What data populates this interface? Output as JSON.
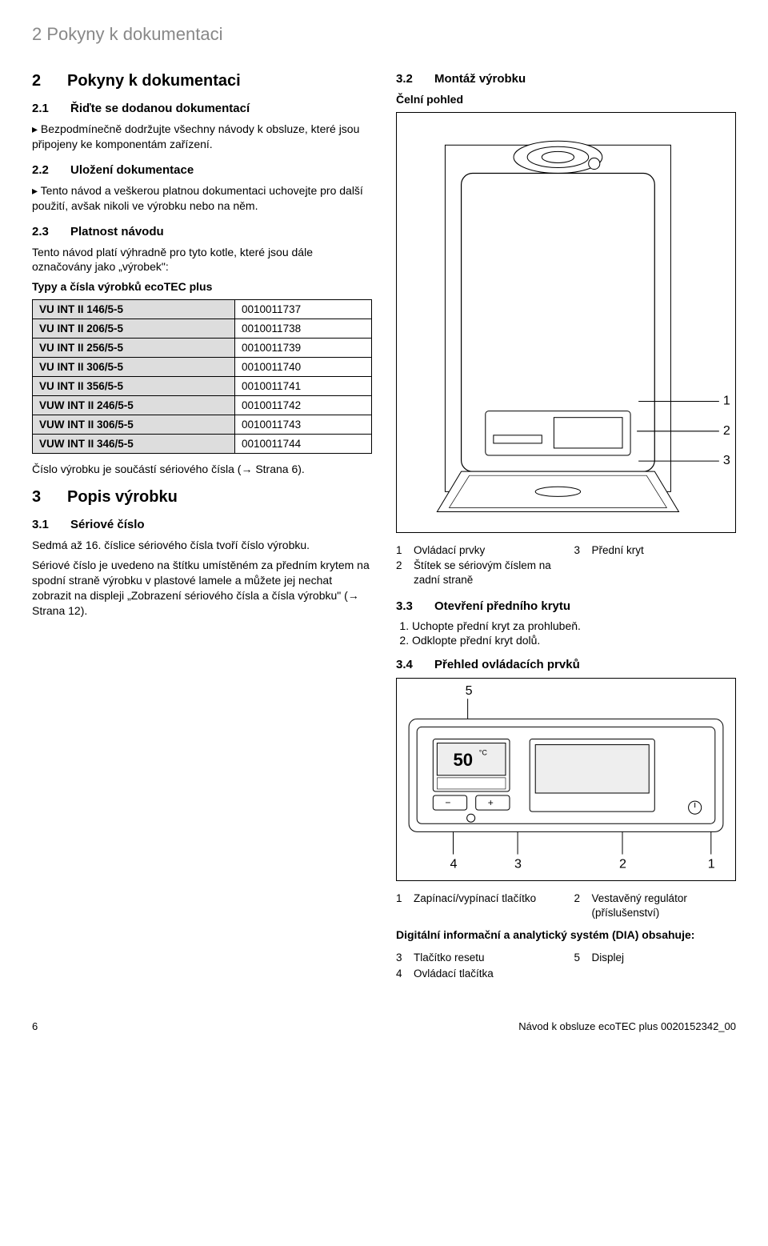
{
  "header": "2 Pokyny k dokumentaci",
  "left": {
    "h2_num": "2",
    "h2_txt": "Pokyny k dokumentaci",
    "s21_num": "2.1",
    "s21_txt": "Řiďte se dodanou dokumentací",
    "s21_item": "Bezpodmínečně dodržujte všechny návody k obsluze, které jsou připojeny ke komponentám zařízení.",
    "s22_num": "2.2",
    "s22_txt": "Uložení dokumentace",
    "s22_item": "Tento návod a veškerou platnou dokumentaci uchovejte pro další použití, avšak nikoli ve výrobku nebo na něm.",
    "s23_num": "2.3",
    "s23_txt": "Platnost návodu",
    "s23_p": "Tento návod platí výhradně pro tyto kotle, které jsou dále označovány jako „výrobek\":",
    "table_title": "Typy a čísla výrobků ecoTEC plus",
    "table_rows": [
      [
        "VU INT II 146/5-5",
        "0010011737"
      ],
      [
        "VU INT II 206/5-5",
        "0010011738"
      ],
      [
        "VU INT II 256/5-5",
        "0010011739"
      ],
      [
        "VU INT II 306/5-5",
        "0010011740"
      ],
      [
        "VU INT II 356/5-5",
        "0010011741"
      ],
      [
        "VUW INT II 246/5-5",
        "0010011742"
      ],
      [
        "VUW INT II 306/5-5",
        "0010011743"
      ],
      [
        "VUW INT II 346/5-5",
        "0010011744"
      ]
    ],
    "after_table": "Číslo výrobku je součástí sériového čísla (→ Strana 6).",
    "h3_num": "3",
    "h3_txt": "Popis výrobku",
    "s31_num": "3.1",
    "s31_txt": "Sériové číslo",
    "s31_p1": "Sedmá až 16. číslice sériového čísla tvoří číslo výrobku.",
    "s31_p2": "Sériové číslo je uvedeno na štítku umístěném za předním krytem na spodní straně výrobku v plastové lamele a můžete jej nechat zobrazit na displeji „Zobrazení sériového čísla a čísla výrobku\" (→ Strana 12)."
  },
  "right": {
    "s32_num": "3.2",
    "s32_txt": "Montáž výrobku",
    "fig1_caption": "Čelní pohled",
    "fig1_callouts": [
      "1",
      "2",
      "3"
    ],
    "legend1": {
      "l1n": "1",
      "l1t": "Ovládací prvky",
      "l2n": "2",
      "l2t": "Štítek se sériovým číslem na zadní straně",
      "l3n": "3",
      "l3t": "Přední kryt"
    },
    "s33_num": "3.3",
    "s33_txt": "Otevření předního krytu",
    "s33_steps": [
      "Uchopte přední kryt za prohlubeň.",
      "Odklopte přední kryt dolů."
    ],
    "s34_num": "3.4",
    "s34_txt": "Přehled ovládacích prvků",
    "fig2_callouts_top": [
      "5"
    ],
    "fig2_callouts_bottom": [
      "4",
      "3",
      "2",
      "1"
    ],
    "fig2_disp": "50",
    "legend2": {
      "l1n": "1",
      "l1t": "Zapínací/vypínací tlačítko",
      "l2n": "2",
      "l2t": "Vestavěný regulátor (příslušenství)"
    },
    "dia_title": "Digitální informační a analytický systém (DIA) obsahuje:",
    "dia": {
      "l3n": "3",
      "l3t": "Tlačítko resetu",
      "l4n": "4",
      "l4t": "Ovládací tlačítka",
      "l5n": "5",
      "l5t": "Displej"
    }
  },
  "footer": {
    "page": "6",
    "doc": "Návod k obsluze  ecoTEC plus 0020152342_00"
  }
}
